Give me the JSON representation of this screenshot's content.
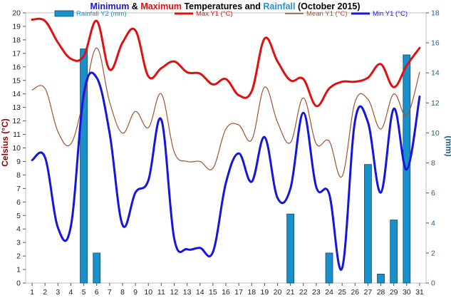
{
  "chart_data": {
    "type": "line",
    "title": {
      "parts": [
        {
          "text": "Minimum",
          "color": "#1a1acc"
        },
        {
          "text": " & ",
          "color": "#000000"
        },
        {
          "text": "Maximum",
          "color": "#dd1111"
        },
        {
          "text": " Temperatures and ",
          "color": "#000000"
        },
        {
          "text": "Rainfall",
          "color": "#2a8fc4"
        },
        {
          "text": " (October 2015)",
          "color": "#000000"
        }
      ]
    },
    "ylabel_left": "Celsius (°C)",
    "ylabel_right": "(mm)",
    "ylim_left": [
      0,
      20
    ],
    "ylim_right": [
      0,
      18
    ],
    "x": [
      1,
      2,
      3,
      4,
      5,
      6,
      7,
      8,
      9,
      10,
      11,
      12,
      13,
      14,
      15,
      16,
      17,
      18,
      19,
      20,
      21,
      22,
      23,
      24,
      25,
      26,
      27,
      28,
      29,
      30,
      31
    ],
    "yticks_left": [
      0,
      1,
      2,
      3,
      4,
      5,
      6,
      7,
      8,
      9,
      10,
      11,
      12,
      13,
      14,
      15,
      16,
      17,
      18,
      19,
      20
    ],
    "yticks_right": [
      0,
      2,
      4,
      6,
      8,
      10,
      12,
      14,
      16,
      18
    ],
    "legend": [
      {
        "label": "Rainfall Y2 (mm)",
        "color": "#1a8fc9",
        "kind": "bar"
      },
      {
        "label": "Max Y1 (°C)",
        "color": "#e01010",
        "kind": "line"
      },
      {
        "label": "Mean Y1 (°C)",
        "color": "#a0522d",
        "kind": "line"
      },
      {
        "label": "Min Y1 (°C)",
        "color": "#1515dd",
        "kind": "line"
      }
    ],
    "series": [
      {
        "name": "Rainfall Y2 (mm)",
        "axis": "right",
        "type": "bar",
        "color": "#1a8fc9",
        "values": [
          0,
          0,
          0,
          0,
          15.6,
          2.0,
          0,
          0,
          0,
          0,
          0,
          0,
          0,
          0,
          0,
          0,
          0,
          0,
          0,
          0,
          4.6,
          0,
          0,
          2.0,
          0,
          0,
          7.9,
          0.6,
          4.2,
          15.2,
          0
        ]
      },
      {
        "name": "Max Y1 (°C)",
        "axis": "left",
        "type": "line",
        "color": "#e01010",
        "width": 3,
        "values": [
          19.5,
          19.4,
          17.8,
          16.6,
          16.8,
          19.4,
          15.8,
          17.8,
          18.7,
          15.3,
          15.9,
          16.4,
          15.6,
          15.5,
          14.7,
          15.1,
          13.9,
          14.2,
          18.1,
          16.4,
          15.0,
          15.1,
          13.1,
          14.4,
          14.9,
          14.9,
          15.2,
          16.2,
          14.5,
          16.1,
          17.4
        ]
      },
      {
        "name": "Mean Y1 (°C)",
        "axis": "left",
        "type": "line",
        "color": "#a0522d",
        "width": 1.2,
        "values": [
          14.3,
          14.4,
          11.2,
          10.3,
          13.6,
          17.4,
          13.4,
          11.1,
          12.7,
          11.5,
          14.0,
          9.7,
          9.0,
          9.0,
          8.5,
          11.4,
          11.7,
          10.6,
          14.5,
          11.9,
          10.4,
          13.7,
          10.3,
          10.5,
          7.9,
          13.4,
          13.6,
          11.4,
          14.0,
          12.4,
          15.6
        ]
      },
      {
        "name": "Min Y1 (°C)",
        "axis": "left",
        "type": "line",
        "color": "#1515dd",
        "width": 3,
        "values": [
          9.1,
          9.3,
          4.1,
          4.2,
          14.0,
          15.2,
          11.1,
          4.3,
          6.7,
          7.6,
          12.1,
          3.3,
          2.5,
          2.6,
          2.3,
          7.4,
          9.6,
          7.5,
          10.8,
          6.3,
          7.0,
          12.6,
          7.1,
          6.6,
          1.1,
          12.0,
          11.9,
          6.7,
          12.9,
          8.4,
          13.8
        ]
      }
    ]
  }
}
